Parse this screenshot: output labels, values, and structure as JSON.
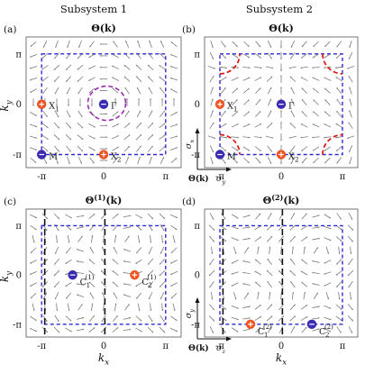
{
  "header": {
    "subsystem_1": "Subsystem 1",
    "subsystem_2": "Subsystem 2"
  },
  "colors": {
    "dashed_box": "#2b2bd6",
    "arrow": "#7a7a7a",
    "frame": "#555555",
    "positive_marker": "#ee5522",
    "negative_marker": "#3a2bb0",
    "red_dash": "#dd1111",
    "purple_dash": "#9a2bb0",
    "label_red": "#dd1111",
    "label_blue": "#2b2bd6"
  },
  "panels": [
    {
      "id": "a",
      "letter": "(a)",
      "title": "Θ(k)",
      "ylabel": "k",
      "ysub": "y",
      "xlabel": "",
      "xsub": "",
      "xticks": [
        "-π",
        "0",
        "π"
      ],
      "yticks": [
        "π",
        "0",
        "-π"
      ],
      "markers": [
        {
          "sign": "+",
          "kx": -1.0,
          "ky": 0.0,
          "label": "X",
          "sub": "1",
          "sup": "",
          "color_key": "label_red"
        },
        {
          "sign": "-",
          "kx": 0.0,
          "ky": 0.0,
          "label": "Γ",
          "sub": "",
          "sup": "",
          "color_key": "label_blue"
        },
        {
          "sign": "-",
          "kx": -1.0,
          "ky": -1.0,
          "label": "M",
          "sub": "",
          "sup": "",
          "color_key": "label_blue"
        },
        {
          "sign": "+",
          "kx": 0.0,
          "ky": -1.0,
          "label": "X",
          "sub": "2",
          "sup": "",
          "color_key": "label_red"
        }
      ],
      "dashed_circles": "purple",
      "axes_inset": null
    },
    {
      "id": "b",
      "letter": "(b)",
      "title": "Θ(k)",
      "ylabel": "",
      "ysub": "",
      "xlabel": "",
      "xsub": "",
      "xticks": [
        "-π",
        "0",
        "π"
      ],
      "yticks": [
        "π",
        "0",
        "-π"
      ],
      "markers": [
        {
          "sign": "+",
          "kx": -1.0,
          "ky": 0.0,
          "label": "X",
          "sub": "1",
          "sup": "",
          "color_key": "label_red"
        },
        {
          "sign": "-",
          "kx": 0.0,
          "ky": 0.0,
          "label": "Γ",
          "sub": "",
          "sup": "",
          "color_key": "label_blue"
        },
        {
          "sign": "-",
          "kx": -1.0,
          "ky": -1.0,
          "label": "M",
          "sub": "",
          "sup": "",
          "color_key": "label_blue"
        },
        {
          "sign": "+",
          "kx": 0.0,
          "ky": -1.0,
          "label": "X",
          "sub": "2",
          "sup": "",
          "color_key": "label_red"
        }
      ],
      "dashed_circles": "red",
      "axes_inset": {
        "vertical": "σ",
        "vertical_sub": "x",
        "horizontal": "σ",
        "horizontal_sub": "y",
        "origin": "Θ(k)"
      }
    },
    {
      "id": "c",
      "letter": "(c)",
      "title_base": "Θ",
      "title_sup": "(1)",
      "title_tail": "(k)",
      "ylabel": "k",
      "ysub": "y",
      "xlabel": "k",
      "xsub": "x",
      "xticks": [
        "-π",
        "0",
        "π"
      ],
      "yticks": [
        "π",
        "0",
        "-π"
      ],
      "markers": [
        {
          "sign": "-",
          "kx": -0.5,
          "ky": 0.0,
          "label": "C",
          "sub": "1",
          "sup": "(1)",
          "color_key": "label_blue"
        },
        {
          "sign": "+",
          "kx": 0.5,
          "ky": 0.0,
          "label": "C",
          "sub": "2",
          "sup": "(1)",
          "color_key": "label_red"
        }
      ],
      "dashed_circles": "none",
      "axes_inset": null
    },
    {
      "id": "d",
      "letter": "(d)",
      "title_base": "Θ",
      "title_sup": "(2)",
      "title_tail": "(k)",
      "ylabel": "",
      "ysub": "",
      "xlabel": "k",
      "xsub": "x",
      "xticks": [
        "-π",
        "0",
        "π"
      ],
      "yticks": [
        "π",
        "0",
        "-π"
      ],
      "markers": [
        {
          "sign": "+",
          "kx": -0.5,
          "ky": -1.0,
          "label": "C",
          "sub": "1",
          "sup": "(2)",
          "color_key": "label_red"
        },
        {
          "sign": "-",
          "kx": 0.5,
          "ky": -1.0,
          "label": "C",
          "sub": "2",
          "sup": "(2)",
          "color_key": "label_blue"
        }
      ],
      "dashed_circles": "none",
      "axes_inset": {
        "vertical": "σ",
        "vertical_sub": "y",
        "horizontal": "σ",
        "horizontal_sub": "z",
        "origin": "Θ(k)"
      }
    }
  ]
}
